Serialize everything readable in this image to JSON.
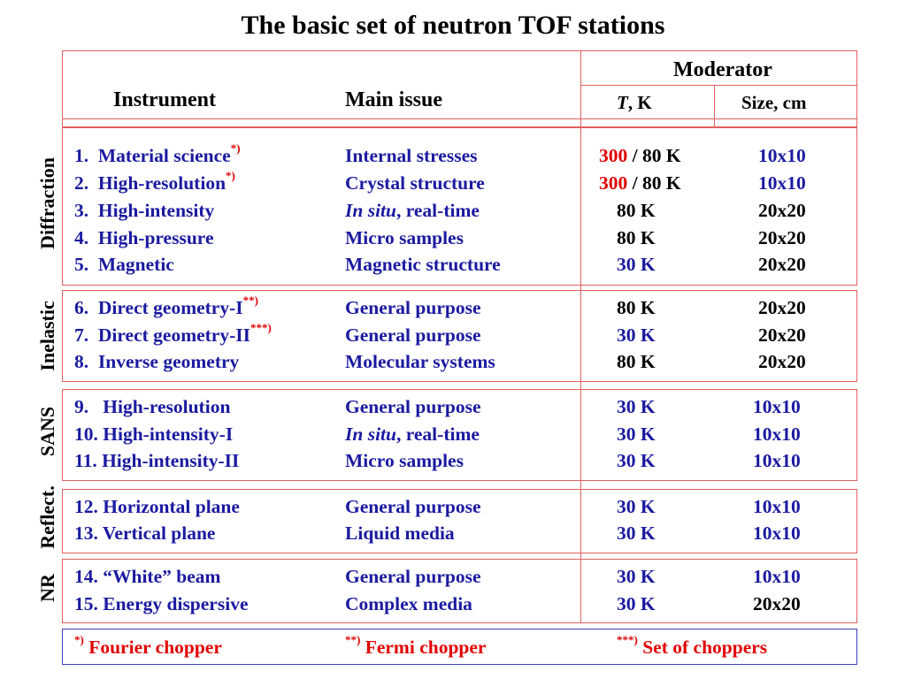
{
  "title": "The basic set of neutron TOF stations",
  "header": {
    "instrument": "Instrument",
    "main_issue": "Main issue",
    "moderator": "Moderator",
    "temp_italic": "T",
    "temp_rest": ", K",
    "size": "Size, cm"
  },
  "groups": {
    "diffraction": "Diffraction",
    "inelastic": "Inelastic",
    "sans": "SANS",
    "reflect": "Reflect.",
    "nr": "NR"
  },
  "rows": [
    {
      "num": "1.",
      "name": "Material science",
      "mark": "*)",
      "issue": "Internal stresses",
      "temp_red": "300",
      "temp": " / 80 K",
      "size": "10x10"
    },
    {
      "num": "2.",
      "name": "High-resolution",
      "mark": "*)",
      "issue": "Crystal structure",
      "temp_red": "300",
      "temp": " / 80 K",
      "size": "10x10"
    },
    {
      "num": "3.",
      "name": "High-intensity",
      "mark": "",
      "issue_italic": "In situ",
      "issue": ", real-time",
      "temp": "80 K",
      "size": "20x20"
    },
    {
      "num": "4.",
      "name": "High-pressure",
      "mark": "",
      "issue": "Micro samples",
      "temp": "80 K",
      "size": "20x20"
    },
    {
      "num": "5.",
      "name": "Magnetic",
      "mark": "",
      "issue": "Magnetic structure",
      "temp": "30 K",
      "size": "20x20"
    },
    {
      "num": "6.",
      "name": "Direct geometry-I",
      "mark": "**)",
      "issue": "General purpose",
      "temp": "80 K",
      "size": "20x20"
    },
    {
      "num": "7.",
      "name": "Direct geometry-II",
      "mark": "***)",
      "issue": "General purpose",
      "temp": "30 K",
      "size": "20x20"
    },
    {
      "num": "8.",
      "name": "Inverse geometry",
      "mark": "",
      "issue": "Molecular systems",
      "temp": "80 K",
      "size": "20x20"
    },
    {
      "num": "9.",
      "name": "High-resolution",
      "mark": "",
      "issue": "General purpose",
      "temp": "30 K",
      "size": "10x10"
    },
    {
      "num": "10.",
      "name": "High-intensity-I",
      "mark": "",
      "issue_italic": "In situ",
      "issue": ", real-time",
      "temp": "30 K",
      "size": "10x10"
    },
    {
      "num": "11.",
      "name": "High-intensity-II",
      "mark": "",
      "issue": "Micro samples",
      "temp": "30 K",
      "size": "10x10"
    },
    {
      "num": "12.",
      "name": "Horizontal plane",
      "mark": "",
      "issue": "General purpose",
      "temp": "30 K",
      "size": "10x10"
    },
    {
      "num": "13.",
      "name": "Vertical plane",
      "mark": "",
      "issue": "Liquid media",
      "temp": "30 K",
      "size": "10x10"
    },
    {
      "num": "14.",
      "name": "“White” beam",
      "mark": "",
      "issue": "General purpose",
      "temp": "30 K",
      "size": "10x10"
    },
    {
      "num": "15.",
      "name": "Energy dispersive",
      "mark": "",
      "issue": "Complex media",
      "temp": "30 K",
      "size": "20x20"
    }
  ],
  "footnotes": [
    {
      "mark": "*)",
      "text": " Fourier chopper"
    },
    {
      "mark": "**)",
      "text": " Fermi chopper"
    },
    {
      "mark": "***)",
      "text": " Set of choppers"
    }
  ],
  "colors": {
    "text_blue": "#1a1aa0",
    "accent_red": "#e00000",
    "border_red": "#e06060",
    "border_blue": "#4040c0"
  }
}
